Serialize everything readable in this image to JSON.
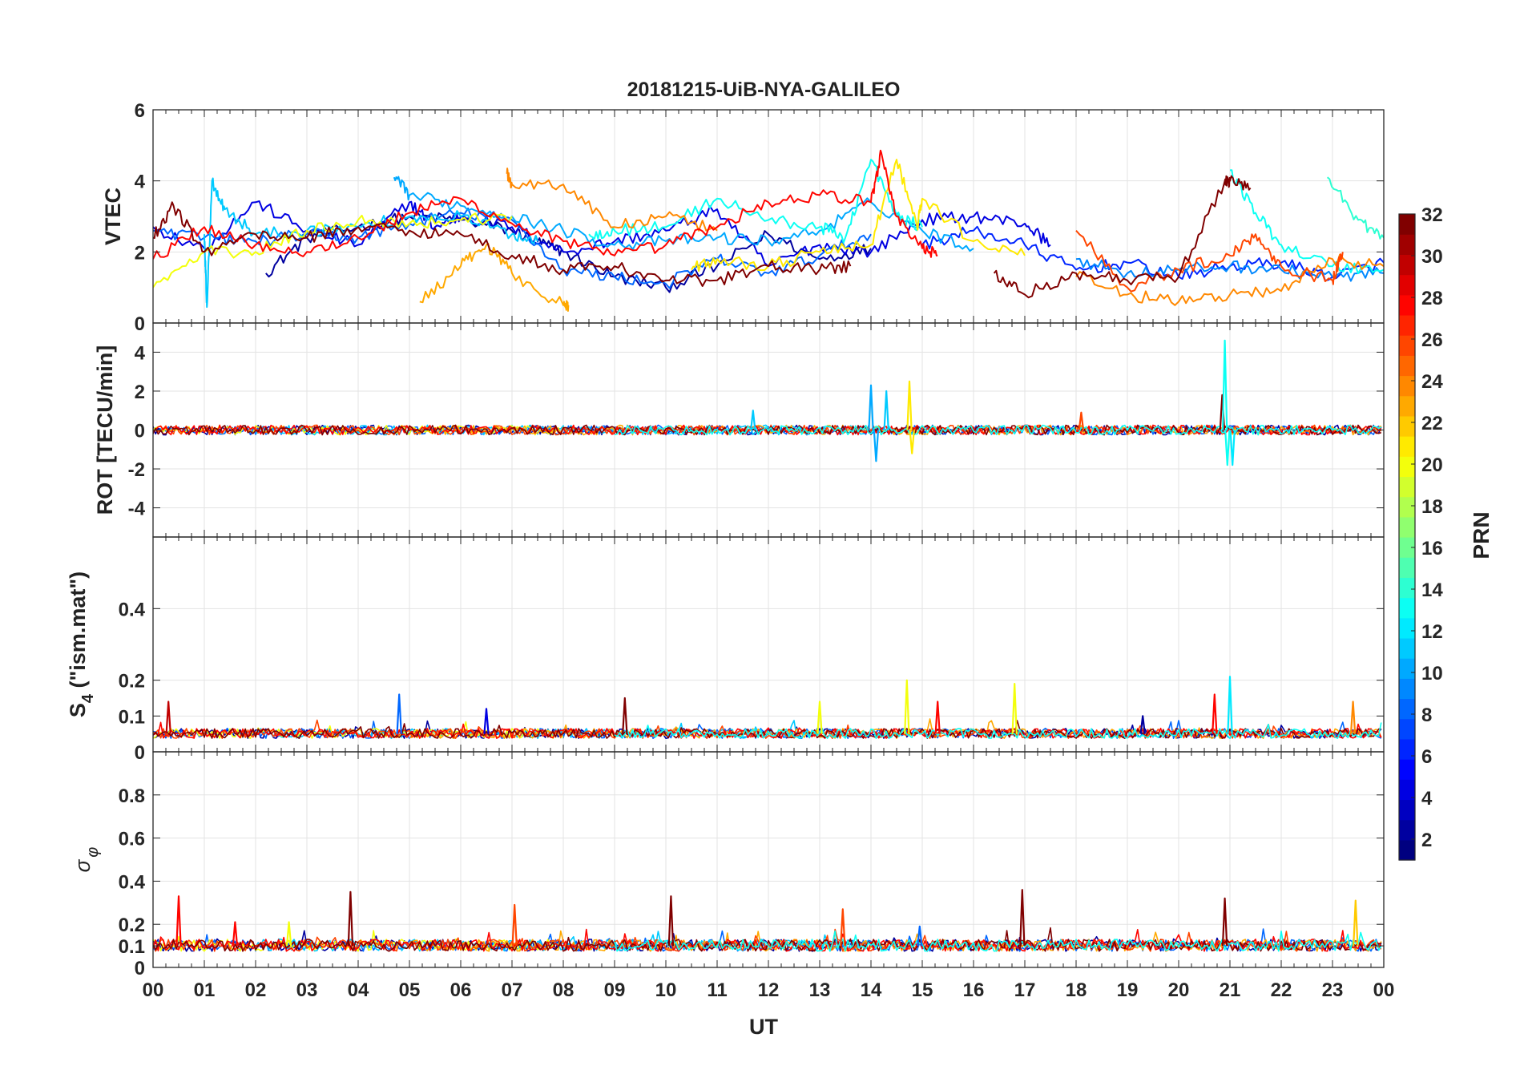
{
  "chart_data": {
    "type": "line",
    "title": "20181215-UiB-NYA-GALILEO",
    "xlabel": "UT",
    "x_unit": "hour",
    "xlim": [
      0,
      24
    ],
    "x_ticks": [
      0,
      1,
      2,
      3,
      4,
      5,
      6,
      7,
      8,
      9,
      10,
      11,
      12,
      13,
      14,
      15,
      16,
      17,
      18,
      19,
      20,
      21,
      22,
      23,
      24
    ],
    "x_tick_labels": [
      "00",
      "01",
      "02",
      "03",
      "04",
      "05",
      "06",
      "07",
      "08",
      "09",
      "10",
      "11",
      "12",
      "13",
      "14",
      "15",
      "16",
      "17",
      "18",
      "19",
      "20",
      "21",
      "22",
      "23",
      "00"
    ],
    "grid": true,
    "panels": [
      {
        "ylabel": "VTEC",
        "ylim": [
          0,
          6
        ],
        "y_ticks": [
          0,
          2,
          4,
          6
        ],
        "y_tick_labels": [
          "0",
          "2",
          "4",
          "6"
        ],
        "series": [
          {
            "prn": 2,
            "x": [
              2.2,
              3,
              4,
              5,
              6,
              7,
              7.5,
              8,
              9,
              10,
              11,
              12,
              13,
              14
            ],
            "y": [
              1.4,
              2.4,
              2.7,
              3.0,
              2.9,
              2.6,
              2.3,
              2.0,
              1.3,
              1.0,
              1.6,
              2.5,
              1.8,
              2.1
            ]
          },
          {
            "prn": 4,
            "x": [
              0,
              1,
              2,
              3,
              4,
              5,
              5.5,
              6,
              7,
              8,
              9,
              10,
              11,
              12,
              13,
              14,
              15,
              16,
              17,
              17.5
            ],
            "y": [
              2.7,
              2.1,
              3.4,
              2.6,
              2.2,
              3.4,
              2.7,
              3.0,
              2.7,
              2.0,
              2.3,
              2.6,
              3.2,
              1.6,
              2.2,
              2.0,
              2.9,
              3.0,
              2.8,
              2.2
            ]
          },
          {
            "prn": 6,
            "x": [
              15,
              16,
              17,
              18,
              19,
              20,
              21,
              22,
              23,
              24
            ],
            "y": [
              2.2,
              2.6,
              2.2,
              1.5,
              1.7,
              1.3,
              1.6,
              1.7,
              1.3,
              1.7
            ]
          },
          {
            "prn": 8,
            "x": [
              0,
              1,
              2,
              3,
              4,
              5,
              6,
              7,
              8,
              9,
              10,
              11,
              12,
              13,
              14
            ],
            "y": [
              2.6,
              2.4,
              2.3,
              2.5,
              2.4,
              2.8,
              3.1,
              2.9,
              1.5,
              1.3,
              1.1,
              1.8,
              1.4,
              1.9,
              2.5
            ]
          },
          {
            "prn": 9,
            "x": [
              18,
              19,
              20,
              21,
              22,
              23,
              24
            ],
            "y": [
              1.8,
              1.4,
              1.5,
              1.6,
              1.5,
              1.3,
              1.4
            ]
          },
          {
            "prn": 10,
            "x": [
              4.7,
              5,
              6,
              7,
              8,
              9,
              10,
              11,
              12,
              13,
              14,
              15,
              16
            ],
            "y": [
              4.1,
              3.6,
              3.3,
              3.0,
              2.6,
              2.2,
              2.3,
              2.4,
              2.3,
              2.6,
              3.4,
              2.6,
              2.1
            ]
          },
          {
            "prn": 11,
            "x": [
              1,
              1.05,
              1.15,
              1.4,
              2,
              3,
              4,
              5,
              6,
              7,
              7.5
            ],
            "y": [
              2.5,
              0.45,
              4.0,
              3.2,
              2.5,
              2.6,
              2.7,
              3.0,
              3.0,
              2.5,
              2.3
            ]
          },
          {
            "prn": 13,
            "x": [
              8.5,
              9,
              10,
              11,
              12,
              13,
              13.5,
              14,
              14.5,
              15
            ],
            "y": [
              2.5,
              2.6,
              2.7,
              3.5,
              2.9,
              2.7,
              2.4,
              4.6,
              3.0,
              2.7
            ]
          },
          {
            "prn": 13,
            "x": [
              21,
              21.5,
              22,
              23,
              24
            ],
            "y": [
              4.3,
              3.1,
              2.2,
              1.6,
              1.5
            ]
          },
          {
            "prn": 14,
            "x": [
              22.9,
              23.5,
              24
            ],
            "y": [
              4.1,
              2.9,
              2.4
            ]
          },
          {
            "prn": 20,
            "x": [
              0,
              1,
              2,
              3,
              4,
              5,
              6,
              7
            ],
            "y": [
              1.0,
              2.0,
              2.0,
              2.6,
              2.9,
              2.8,
              2.9,
              3.0
            ]
          },
          {
            "prn": 21,
            "x": [
              10.5,
              11,
              12,
              13,
              14,
              14.5,
              14.9,
              15,
              16,
              17
            ],
            "y": [
              1.5,
              1.8,
              1.6,
              2.0,
              2.2,
              4.6,
              2.7,
              3.5,
              2.3,
              1.9
            ]
          },
          {
            "prn": 23,
            "x": [
              5.2,
              6,
              6.5,
              7,
              8,
              8.1
            ],
            "y": [
              0.6,
              1.6,
              2.2,
              1.4,
              0.5,
              0.5
            ]
          },
          {
            "prn": 24,
            "x": [
              6.9,
              7,
              8,
              9,
              10,
              11
            ],
            "y": [
              4.2,
              3.9,
              3.9,
              2.7,
              3.0,
              2.6
            ]
          },
          {
            "prn": 24,
            "x": [
              18,
              19,
              20,
              21,
              22,
              23,
              24
            ],
            "y": [
              1.3,
              0.8,
              0.6,
              0.8,
              0.9,
              1.8,
              1.6
            ]
          },
          {
            "prn": 26,
            "x": [
              18,
              19,
              20,
              21,
              21.5,
              22,
              23,
              23.2
            ],
            "y": [
              2.6,
              1.0,
              1.5,
              1.9,
              2.5,
              1.6,
              1.2,
              2.0
            ]
          },
          {
            "prn": 28,
            "x": [
              0,
              1,
              2,
              3,
              4,
              5,
              6,
              7,
              8,
              9,
              10,
              11,
              12,
              13,
              14,
              14.2,
              14.5,
              15,
              15.3
            ],
            "y": [
              1.8,
              2.7,
              2.2,
              2.0,
              2.4,
              3.1,
              3.5,
              2.8,
              2.3,
              1.9,
              2.2,
              2.7,
              3.4,
              3.6,
              3.4,
              4.8,
              3.0,
              2.1,
              1.9
            ]
          },
          {
            "prn": 32,
            "x": [
              0,
              0.4,
              1,
              2,
              3,
              4,
              5,
              6,
              7,
              8,
              9,
              10,
              11,
              12,
              13,
              13.6
            ],
            "y": [
              2.4,
              3.3,
              2.0,
              2.5,
              2.4,
              2.7,
              2.6,
              2.5,
              1.9,
              1.5,
              1.6,
              1.2,
              1.2,
              1.6,
              1.5,
              1.6
            ]
          },
          {
            "prn": 32,
            "x": [
              16.4,
              17,
              18,
              19,
              20,
              20.9,
              21,
              21.4
            ],
            "y": [
              1.4,
              0.8,
              1.4,
              1.2,
              1.3,
              4.0,
              4.0,
              3.8
            ]
          }
        ]
      },
      {
        "ylabel": "ROT [TECU/min]",
        "ylim": [
          -5.5,
          5.5
        ],
        "y_ticks": [
          -4,
          -2,
          0,
          2,
          4
        ],
        "y_tick_labels": [
          "-4",
          "-2",
          "0",
          "2",
          "4"
        ],
        "typical_amplitude": 0.25,
        "spikes": [
          {
            "x": 14.0,
            "y": 2.3,
            "prn": 10
          },
          {
            "x": 14.1,
            "y": -1.6,
            "prn": 10
          },
          {
            "x": 14.3,
            "y": 2.0,
            "prn": 11
          },
          {
            "x": 14.75,
            "y": 2.5,
            "prn": 21
          },
          {
            "x": 14.8,
            "y": -1.2,
            "prn": 21
          },
          {
            "x": 20.85,
            "y": 1.8,
            "prn": 32
          },
          {
            "x": 20.9,
            "y": 4.6,
            "prn": 13
          },
          {
            "x": 20.95,
            "y": -1.8,
            "prn": 13
          },
          {
            "x": 21.05,
            "y": -1.8,
            "prn": 12
          },
          {
            "x": 18.1,
            "y": 0.9,
            "prn": 26
          },
          {
            "x": 11.7,
            "y": 1.0,
            "prn": 11
          }
        ]
      },
      {
        "ylabel_main": "S",
        "ylabel_sub": "4",
        "ylabel_rest": " (\"ism.mat\")",
        "ylim": [
          0,
          0.6
        ],
        "y_ticks": [
          0,
          0.1,
          0.2,
          0.4
        ],
        "y_tick_labels": [
          "0",
          "0.1",
          "0.2",
          "0.4"
        ],
        "baseline": 0.05,
        "spikes": [
          {
            "x": 0.3,
            "y": 0.14,
            "prn": 30
          },
          {
            "x": 4.8,
            "y": 0.16,
            "prn": 8
          },
          {
            "x": 6.5,
            "y": 0.12,
            "prn": 4
          },
          {
            "x": 9.2,
            "y": 0.15,
            "prn": 32
          },
          {
            "x": 13.0,
            "y": 0.14,
            "prn": 20
          },
          {
            "x": 14.7,
            "y": 0.2,
            "prn": 20
          },
          {
            "x": 15.3,
            "y": 0.14,
            "prn": 28
          },
          {
            "x": 16.8,
            "y": 0.19,
            "prn": 20
          },
          {
            "x": 19.3,
            "y": 0.1,
            "prn": 2
          },
          {
            "x": 20.7,
            "y": 0.16,
            "prn": 28
          },
          {
            "x": 21.0,
            "y": 0.21,
            "prn": 12
          },
          {
            "x": 23.4,
            "y": 0.14,
            "prn": 24
          }
        ]
      },
      {
        "ylabel": "σ φ",
        "ylim": [
          0,
          1.0
        ],
        "y_ticks": [
          0,
          0.1,
          0.2,
          0.4,
          0.6,
          0.8
        ],
        "y_tick_labels": [
          "0",
          "0.1",
          "0.2",
          "0.4",
          "0.6",
          "0.8"
        ],
        "baseline": 0.1,
        "spikes": [
          {
            "x": 0.5,
            "y": 0.33,
            "prn": 28
          },
          {
            "x": 1.6,
            "y": 0.21,
            "prn": 28
          },
          {
            "x": 2.65,
            "y": 0.21,
            "prn": 20
          },
          {
            "x": 3.85,
            "y": 0.35,
            "prn": 32
          },
          {
            "x": 7.05,
            "y": 0.29,
            "prn": 26
          },
          {
            "x": 10.1,
            "y": 0.33,
            "prn": 32
          },
          {
            "x": 13.45,
            "y": 0.27,
            "prn": 26
          },
          {
            "x": 14.95,
            "y": 0.19,
            "prn": 8
          },
          {
            "x": 16.95,
            "y": 0.36,
            "prn": 32
          },
          {
            "x": 20.9,
            "y": 0.32,
            "prn": 32
          },
          {
            "x": 23.45,
            "y": 0.31,
            "prn": 22
          }
        ]
      }
    ],
    "colorbar": {
      "label": "PRN",
      "colormap": "jet",
      "range": [
        1,
        32
      ],
      "ticks": [
        2,
        4,
        6,
        8,
        10,
        12,
        14,
        16,
        18,
        20,
        22,
        24,
        26,
        28,
        30,
        32
      ],
      "tick_labels": [
        "2",
        "4",
        "6",
        "8",
        "10",
        "12",
        "14",
        "16",
        "18",
        "20",
        "22",
        "24",
        "26",
        "28",
        "30",
        "32"
      ]
    }
  }
}
